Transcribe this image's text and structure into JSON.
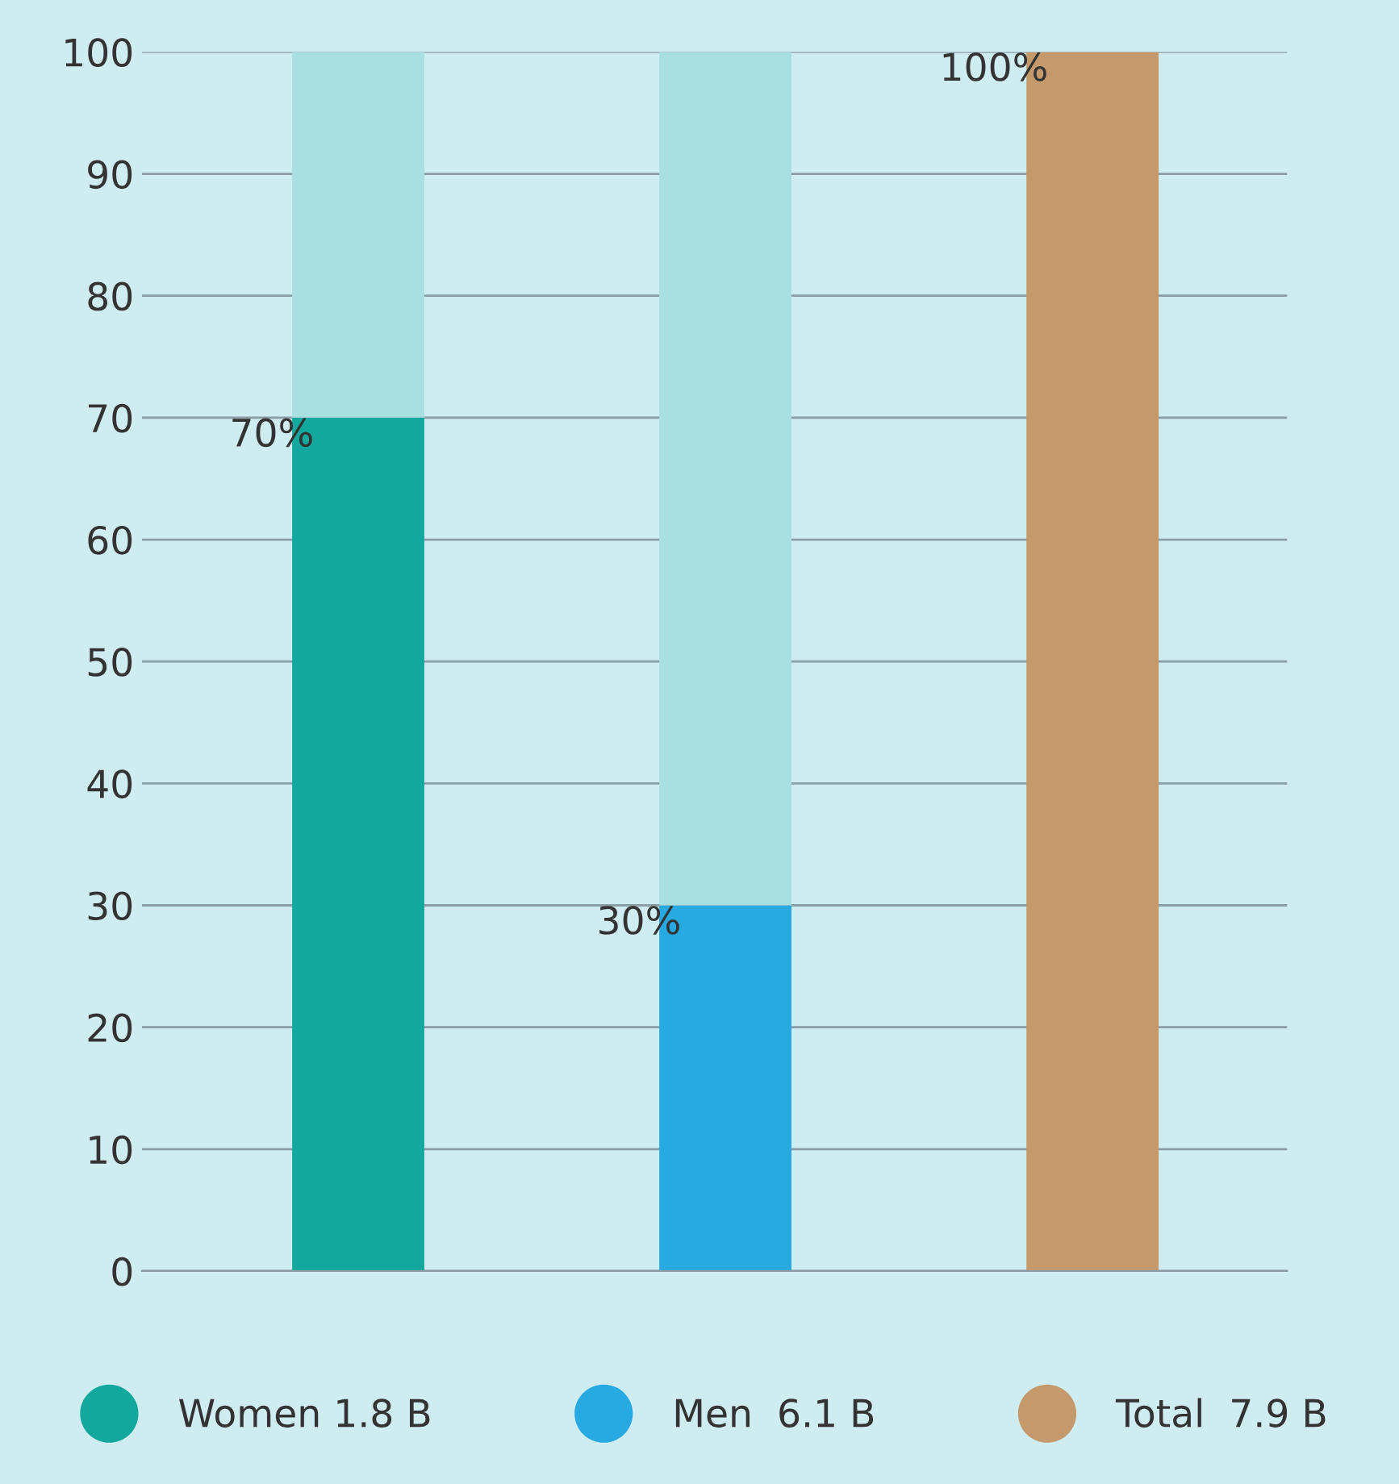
{
  "chart_data": {
    "type": "bar",
    "stacked": true,
    "categories": [
      null,
      null,
      null
    ],
    "series": [
      {
        "name": "Women 1.8 B",
        "color": "#13a89e",
        "values": [
          70,
          null,
          null
        ],
        "value_labels": [
          "70%",
          null,
          null
        ]
      },
      {
        "name": "Men  6.1 B",
        "color": "#27a9e1",
        "values": [
          null,
          30,
          null
        ],
        "value_labels": [
          null,
          "30%",
          null
        ]
      },
      {
        "name": "Total  7.9 B",
        "color": "#c49a6c",
        "values": [
          null,
          null,
          100
        ],
        "value_labels": [
          null,
          null,
          "100%"
        ]
      },
      {
        "color": "#a8dfe0",
        "values": [
          30,
          70,
          null
        ]
      }
    ],
    "ylim": [
      0,
      100
    ],
    "yticks": [
      0,
      10,
      20,
      30,
      40,
      50,
      60,
      70,
      80,
      90,
      100
    ],
    "grid": "y",
    "legend": "bottom"
  }
}
